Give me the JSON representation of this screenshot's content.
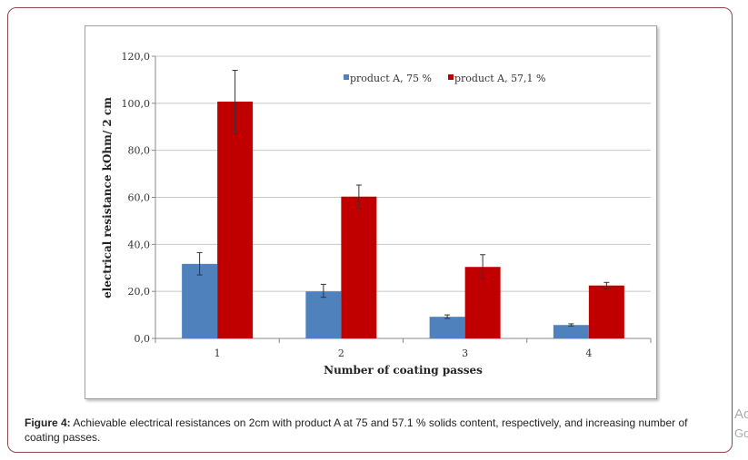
{
  "chart_data": {
    "type": "bar",
    "categories": [
      "1",
      "2",
      "3",
      "4"
    ],
    "series": [
      {
        "name": "product A, 75 %",
        "color": "#4f81bd",
        "values": [
          31.7,
          20.0,
          9.2,
          5.7
        ],
        "error_low": [
          27.0,
          17.5,
          8.5,
          5.3
        ],
        "error_high": [
          36.5,
          23.0,
          10.0,
          6.2
        ]
      },
      {
        "name": "product A, 57,1 %",
        "color": "#c00000",
        "values": [
          100.7,
          60.3,
          30.4,
          22.5
        ],
        "error_low": [
          87.0,
          55.3,
          25.3,
          21.2
        ],
        "error_high": [
          114.0,
          65.2,
          35.6,
          23.8
        ]
      }
    ],
    "xlabel": "Number of coating passes",
    "ylabel": "electrical resistance kOhm/ 2 cm",
    "ylim": [
      0,
      120
    ],
    "yticks": [
      "0,0",
      "20,0",
      "40,0",
      "60,0",
      "80,0",
      "100,0",
      "120,0"
    ],
    "grid": true,
    "legend": "top"
  },
  "caption": {
    "label": "Figure 4:",
    "text": " Achievable electrical resistances on 2cm with product A at 75 and 57.1 % solids content, respectively, and increasing number of coating passes."
  },
  "edge_text": [
    "Ac",
    "Go"
  ]
}
